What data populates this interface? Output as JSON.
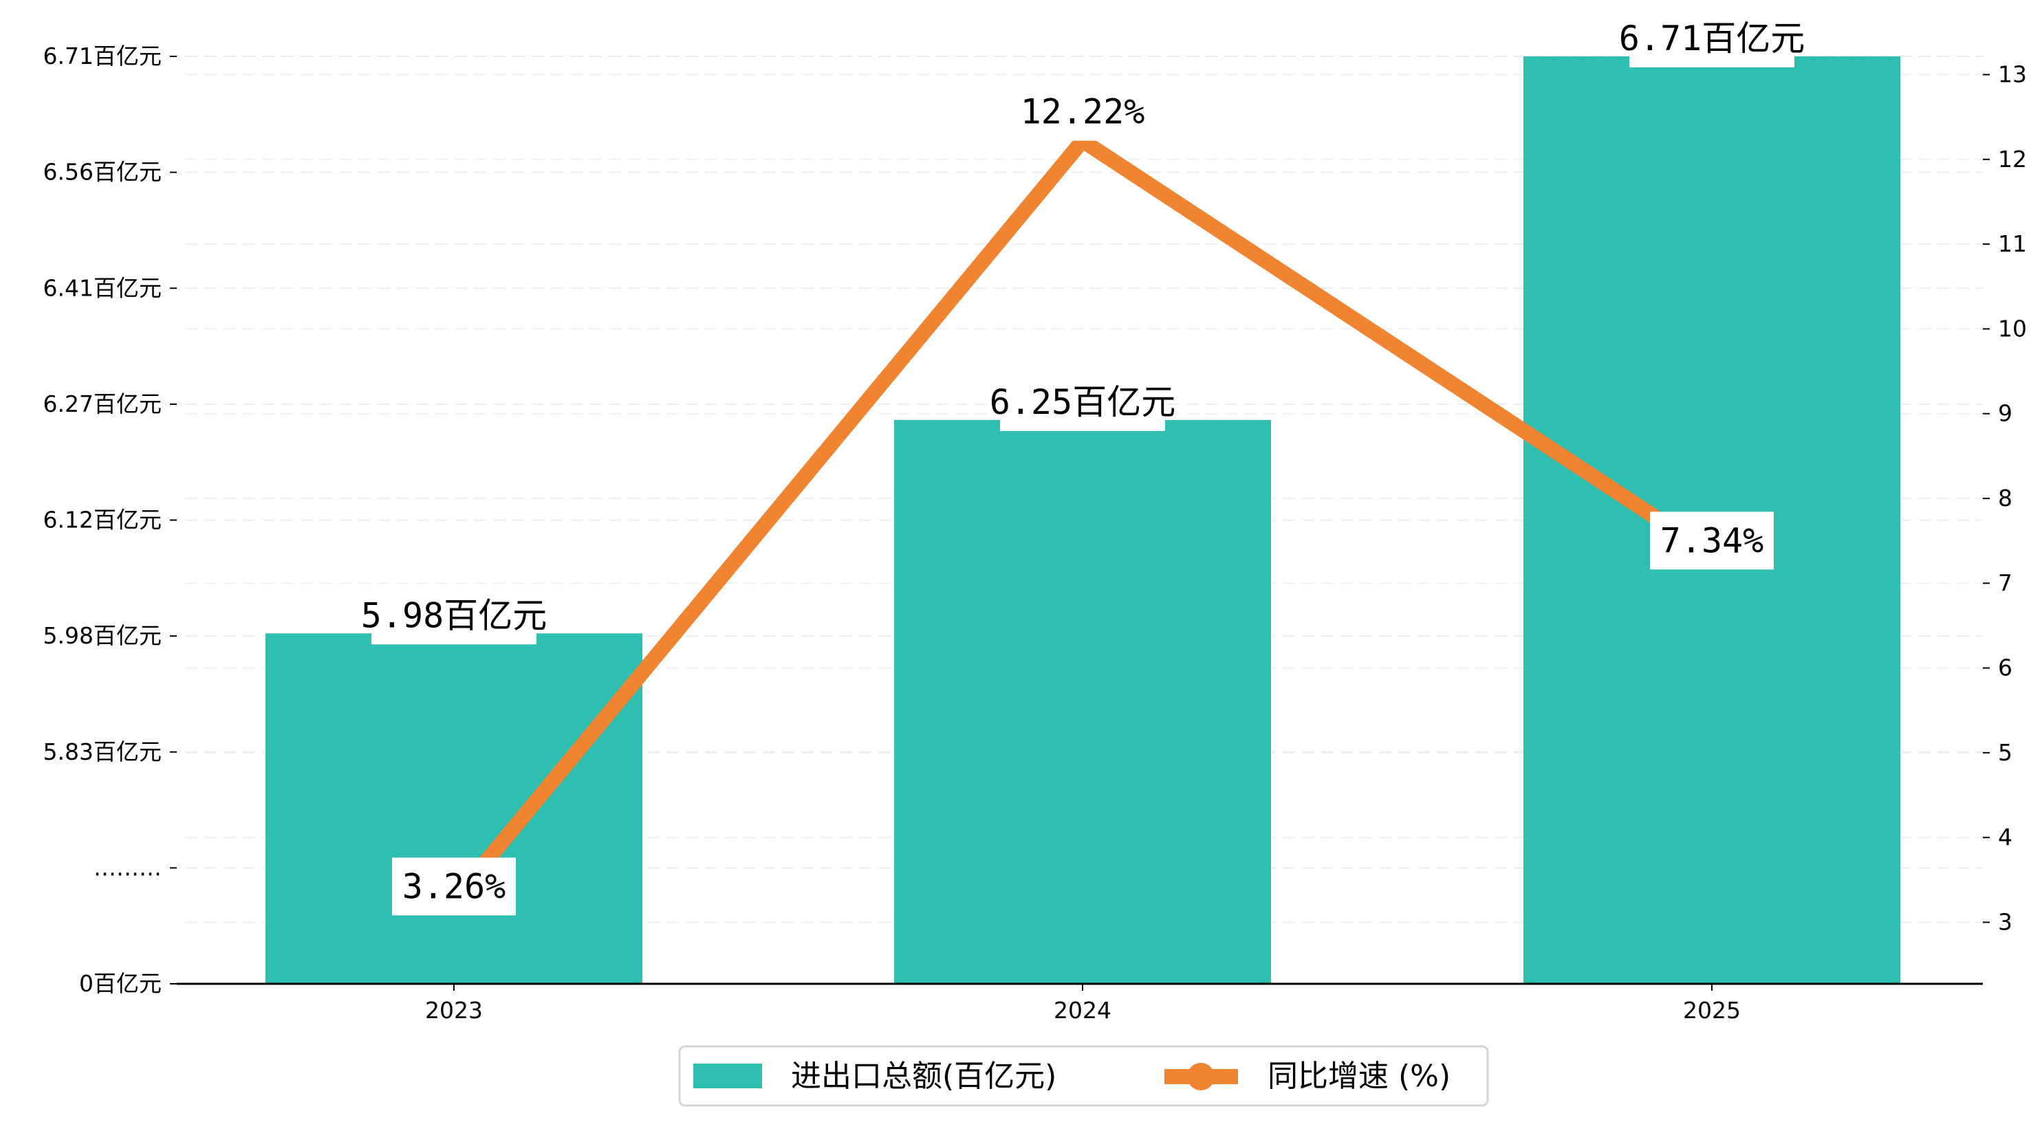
{
  "chart_data": {
    "type": "bar+line",
    "categories": [
      "2023",
      "2024",
      "2025"
    ],
    "series": [
      {
        "name": "进出口总额(百亿元)",
        "type": "bar",
        "axis": "left",
        "values": [
          5.98,
          6.25,
          6.71
        ],
        "labels": [
          "5.98百亿元",
          "6.25百亿元",
          "6.71百亿元"
        ],
        "color": "#2ebfb1"
      },
      {
        "name": "同比增速 (%)",
        "type": "line",
        "axis": "right",
        "values": [
          3.26,
          12.22,
          7.34
        ],
        "labels": [
          "3.26%",
          "12.22%",
          "7.34%"
        ],
        "label_positions": [
          "center",
          "above",
          "center"
        ],
        "color": "#f08431"
      }
    ],
    "left_axis": {
      "ticks": [
        "0百亿元",
        "………",
        "5.83百亿元",
        "5.98百亿元",
        "6.12百亿元",
        "6.27百亿元",
        "6.41百亿元",
        "6.56百亿元",
        "6.71百亿元"
      ],
      "tick_values": [
        null,
        null,
        5.83,
        5.98,
        6.12,
        6.27,
        6.41,
        6.56,
        6.71
      ],
      "broken": true
    },
    "right_axis": {
      "ticks": [
        "3",
        "4",
        "5",
        "6",
        "7",
        "8",
        "9",
        "10",
        "11",
        "12",
        "13"
      ],
      "range": [
        2.3,
        13.8
      ]
    },
    "grid": true,
    "legend": {
      "placement": "bottom-center",
      "entries": [
        "进出口总额(百亿元)",
        "同比增速 (%)"
      ]
    }
  }
}
